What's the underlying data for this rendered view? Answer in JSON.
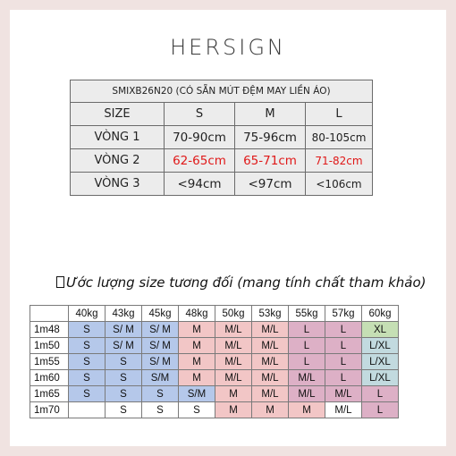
{
  "brand": "HERSIGN",
  "size_chart": {
    "product_code": "SMIXB26N20 (CÓ SẴN MÚT ĐỆM MAY LIỀN ÁO)",
    "header": [
      "SIZE",
      "S",
      "M",
      "L"
    ],
    "rows": [
      {
        "label": "VÒNG 1",
        "values": [
          "70-90cm",
          "75-96cm",
          "80-105cm"
        ]
      },
      {
        "label": "VÒNG 2",
        "values": [
          "62-65cm",
          "65-71cm",
          "71-82cm"
        ]
      },
      {
        "label": "VÒNG 3",
        "values": [
          "<94cm",
          "<97cm",
          "<106cm"
        ]
      }
    ],
    "highlight_color": "#e01818"
  },
  "note": "Ước lượng size tương đối (mang tính chất tham khảo)",
  "estimate_chart": {
    "weights": [
      "40kg",
      "43kg",
      "45kg",
      "48kg",
      "50kg",
      "53kg",
      "55kg",
      "57kg",
      "60kg"
    ],
    "rows": [
      {
        "height": "1m48",
        "cells": [
          "S",
          "S/ M",
          "S/ M",
          "M",
          "M/L",
          "M/L",
          "L",
          "L",
          "XL"
        ]
      },
      {
        "height": "1m50",
        "cells": [
          "S",
          "S/ M",
          "S/ M",
          "M",
          "M/L",
          "M/L",
          "L",
          "L",
          "L/XL"
        ]
      },
      {
        "height": "1m55",
        "cells": [
          "S",
          "S",
          "S/ M",
          "M",
          "M/L",
          "M/L",
          "L",
          "L",
          "L/XL"
        ]
      },
      {
        "height": "1m60",
        "cells": [
          "S",
          "S",
          "S/M",
          "M",
          "M/L",
          "M/L",
          "M/L",
          "L",
          "L/XL"
        ]
      },
      {
        "height": "1m65",
        "cells": [
          "S",
          "S",
          "S",
          "S/M",
          "M",
          "M/L",
          "M/L",
          "M/L",
          "L"
        ]
      },
      {
        "height": "1m70",
        "cells": [
          "",
          "S",
          "S",
          "S",
          "M",
          "M",
          "M",
          "M/L",
          "L"
        ]
      }
    ],
    "colors": {
      "blue": "#b5c8ea",
      "pink": "#f2c6c6",
      "mauve": "#ddb0c6",
      "green": "#c5dfb4",
      "teal": "#c2dadf"
    }
  }
}
